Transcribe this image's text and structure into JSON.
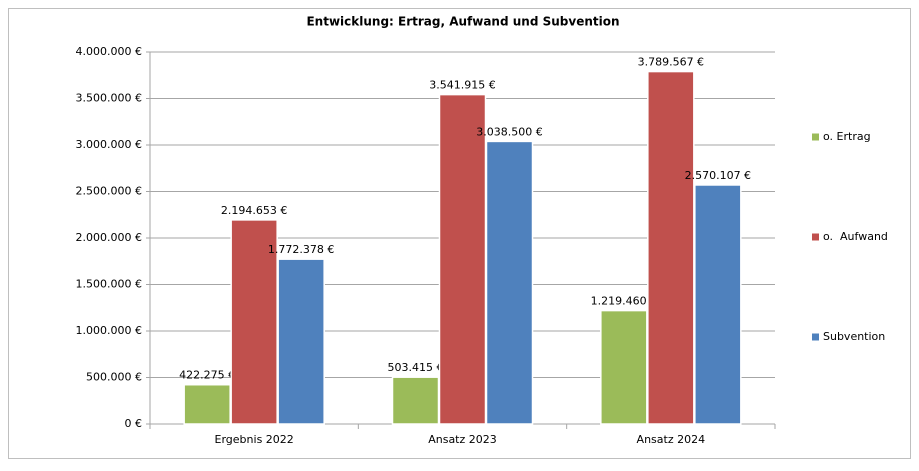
{
  "chart_data": {
    "type": "bar",
    "title": "Entwicklung: Ertrag, Aufwand und Subvention",
    "categories": [
      "Ergebnis 2022",
      "Ansatz 2023",
      "Ansatz 2024"
    ],
    "series": [
      {
        "name": "o. Ertrag",
        "color": "#9bbb59",
        "values": [
          422275,
          503415,
          1219460
        ],
        "value_labels": [
          "422.275 €",
          "503.415 €",
          "1.219.460 €"
        ]
      },
      {
        "name": "o.  Aufwand",
        "color": "#c0504d",
        "values": [
          2194653,
          3541915,
          3789567
        ],
        "value_labels": [
          "2.194.653 €",
          "3.541.915 €",
          "3.789.567 €"
        ]
      },
      {
        "name": "Subvention",
        "color": "#4f81bd",
        "values": [
          1772378,
          3038500,
          2570107
        ],
        "value_labels": [
          "1.772.378 €",
          "3.038.500 €",
          "2.570.107 €"
        ]
      }
    ],
    "ylim": [
      0,
      4000000
    ],
    "yticks": [
      {
        "value": 0,
        "label": "0 €"
      },
      {
        "value": 500000,
        "label": "500.000 €"
      },
      {
        "value": 1000000,
        "label": "1.000.000 €"
      },
      {
        "value": 1500000,
        "label": "1.500.000 €"
      },
      {
        "value": 2000000,
        "label": "2.000.000 €"
      },
      {
        "value": 2500000,
        "label": "2.500.000 €"
      },
      {
        "value": 3000000,
        "label": "3.000.000 €"
      },
      {
        "value": 3500000,
        "label": "3.500.000 €"
      },
      {
        "value": 4000000,
        "label": "4.000.000 €"
      }
    ],
    "grid": true,
    "legend": "right"
  }
}
